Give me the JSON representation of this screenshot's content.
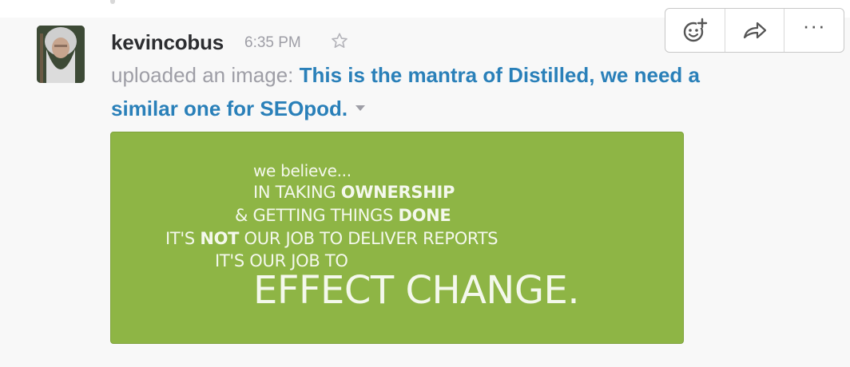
{
  "message": {
    "username": "kevincobus",
    "timestamp": "6:35 PM",
    "action_text": "uploaded an image:",
    "title_line1": "This is the mantra of Distilled, we need a",
    "title_line2": "similar one for SEOpod."
  },
  "image": {
    "line1": "we believe...",
    "line2_prefix": "IN TAKING ",
    "line2_bold": "OWNERSHIP",
    "line3_prefix": "& GETTING THINGS ",
    "line3_bold": "DONE",
    "line4_prefix": "IT'S ",
    "line4_bold": "NOT",
    "line4_suffix": " OUR JOB TO DELIVER REPORTS",
    "line5": "IT'S OUR JOB TO",
    "line6": "EFFECT CHANGE.",
    "background_color": "#8eb545"
  },
  "actions": {
    "items": [
      {
        "icon": "add-reaction-icon"
      },
      {
        "icon": "share-icon"
      },
      {
        "icon": "more-actions-icon",
        "label": "···"
      }
    ]
  },
  "icons": {
    "star": "star-icon",
    "caret": "caret-down-icon"
  },
  "colors": {
    "link": "#2a80b9",
    "username": "#2c2d30",
    "muted": "#9e9ea6"
  }
}
